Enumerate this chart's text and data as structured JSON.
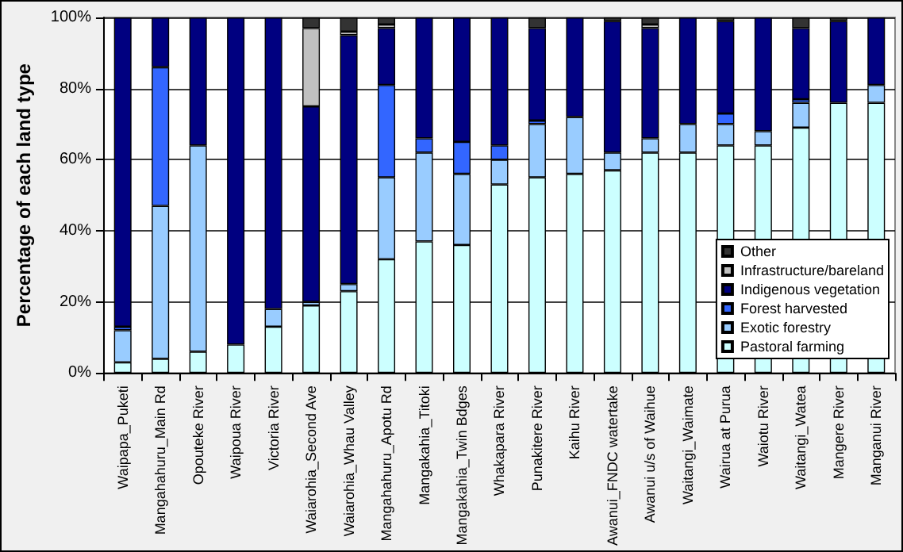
{
  "chart_data": {
    "type": "bar",
    "stacked": true,
    "ylabel": "Percentage of each land type",
    "categories": [
      "Waipapa_Puketi",
      "Mangahahuru_Main Rd",
      "Opouteke River",
      "Waipoua River",
      "Victoria River",
      "Waiarohia_Second Ave",
      "Waiarohia_Whau Valley",
      "Mangahahuru_Apotu Rd",
      "Mangakahia_Titoki",
      "Mangakahia_Twin Bdges",
      "Whakapara River",
      "Punakitere River",
      "Kaihu River",
      "Awanui_FNDC watertake",
      "Awanui u/s of Waihue",
      "Waitangi_Waimate",
      "Wairua at Purua",
      "Waiotu River",
      "Waitangi_Watea",
      "Mangere River",
      "Manganui River"
    ],
    "series": [
      {
        "name": "Pastoral farming",
        "color": "#ccffff",
        "values": [
          3,
          4,
          6,
          8,
          13,
          19,
          23,
          32,
          37,
          36,
          53,
          55,
          56,
          57,
          62,
          62,
          64,
          64,
          69,
          76,
          76
        ]
      },
      {
        "name": "Exotic forestry",
        "color": "#99ccff",
        "values": [
          9,
          43,
          58,
          null,
          5,
          1,
          2,
          23,
          25,
          20,
          7,
          15,
          16,
          5,
          4,
          8,
          6,
          4,
          7,
          null,
          5
        ]
      },
      {
        "name": "Forest harvested",
        "color": "#3366ff",
        "values": [
          1,
          39,
          null,
          null,
          null,
          null,
          null,
          26,
          4,
          9,
          4,
          1,
          null,
          null,
          null,
          null,
          3,
          null,
          1,
          null,
          null
        ]
      },
      {
        "name": "Indigenous vegetation",
        "color": "#000080",
        "values": [
          87,
          14,
          36,
          92,
          82,
          55,
          70,
          16,
          34,
          35,
          36,
          26,
          28,
          37,
          31,
          30,
          26,
          32,
          20,
          23,
          19
        ]
      },
      {
        "name": "Infrastructure/bareland",
        "color": "#c0c0c0",
        "values": [
          null,
          null,
          null,
          null,
          null,
          22,
          1,
          1,
          null,
          null,
          null,
          null,
          null,
          null,
          1,
          null,
          null,
          null,
          null,
          null,
          null
        ]
      },
      {
        "name": "Other",
        "color": "#333333",
        "values": [
          null,
          null,
          null,
          null,
          null,
          3,
          4,
          2,
          null,
          null,
          null,
          3,
          null,
          1,
          2,
          null,
          1,
          null,
          3,
          1,
          null
        ]
      }
    ],
    "ylim": [
      0,
      100
    ],
    "yticks": [
      {
        "value": 0,
        "label": "0%"
      },
      {
        "value": 20,
        "label": "20%"
      },
      {
        "value": 40,
        "label": "40%"
      },
      {
        "value": 60,
        "label": "60%"
      },
      {
        "value": 80,
        "label": "80%"
      },
      {
        "value": 100,
        "label": "100%"
      }
    ],
    "grid": "y",
    "legend": "bottom right"
  }
}
